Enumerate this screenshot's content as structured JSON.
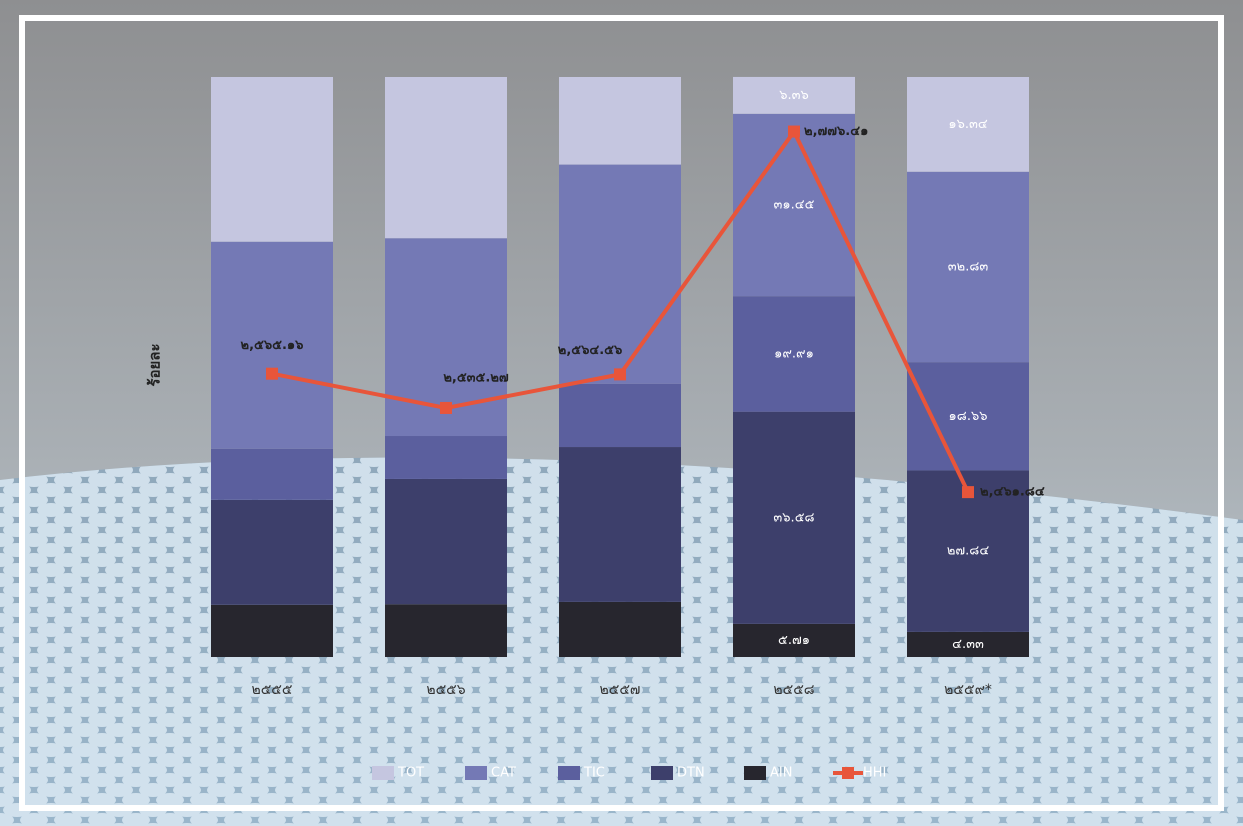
{
  "chart_data": {
    "type": "stacked-bar-line",
    "y_label": "ร้อยละ",
    "categories": [
      "๒๕๕๕",
      "๒๕๕๖",
      "๒๕๕๗",
      "๒๕๕๘",
      "๒๕๕๙*"
    ],
    "ylim": [
      0,
      100
    ],
    "y2lim": [
      2318,
      2824
    ],
    "series": [
      {
        "name": "AIN",
        "color": "#27262e",
        "values": [
          9.0,
          9.1,
          9.5,
          5.71,
          4.33
        ],
        "value_labels": [
          null,
          null,
          null,
          "๕.๗๑",
          "๔.๓๓"
        ]
      },
      {
        "name": "DTN",
        "color": "#3d3f6b",
        "values": [
          18.1,
          21.6,
          26.7,
          36.58,
          27.84
        ],
        "value_labels": [
          null,
          null,
          null,
          "๓๖.๕๘",
          "๒๗.๘๔"
        ]
      },
      {
        "name": "TIC",
        "color": "#5b5f9e",
        "values": [
          8.8,
          7.4,
          10.9,
          19.91,
          18.66
        ],
        "value_labels": [
          null,
          null,
          null,
          "๑๙.๙๑",
          "๑๘.๖๖"
        ]
      },
      {
        "name": "CAT",
        "color": "#7479b5",
        "values": [
          35.7,
          34.1,
          37.8,
          31.45,
          32.83
        ],
        "value_labels": [
          null,
          null,
          null,
          "๓๑.๔๕",
          "๓๒.๘๓"
        ]
      },
      {
        "name": "TOT",
        "color": "#c5c6e0",
        "values": [
          28.4,
          27.8,
          15.1,
          6.36,
          16.34
        ],
        "value_labels": [
          null,
          null,
          null,
          "๖.๓๖",
          "๑๖.๓๔"
        ]
      },
      {
        "name": "HHI",
        "color": "#e8553a",
        "axis": "y2",
        "values": [
          2565.16,
          2535.27,
          2564.56,
          2776.41,
          2461.84
        ],
        "value_labels": [
          "๒,๕๖๕.๑๖",
          "๒,๕๓๕.๒๗",
          "๒,๕๖๔.๕๖",
          "๒,๗๗๖.๔๑",
          "๒,๔๖๑.๘๔"
        ]
      }
    ]
  }
}
